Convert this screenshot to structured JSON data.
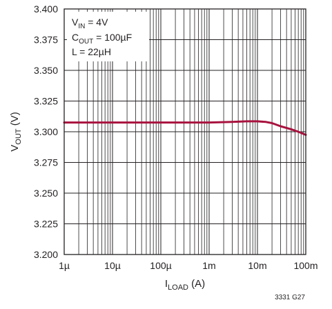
{
  "chart_data": {
    "type": "line",
    "x_scale": "log",
    "xlabel": {
      "main": "I",
      "sub": "LOAD",
      "suffix": " (A)"
    },
    "ylabel": {
      "main": "V",
      "sub": "OUT",
      "suffix": " (V)"
    },
    "xlim": [
      1e-06,
      0.1
    ],
    "ylim": [
      3.2,
      3.4
    ],
    "x_tick_labels": [
      "1µ",
      "10µ",
      "100µ",
      "1m",
      "10m",
      "100m"
    ],
    "y_tick_labels": [
      "3.200",
      "3.225",
      "3.250",
      "3.275",
      "3.300",
      "3.325",
      "3.350",
      "3.375",
      "3.400"
    ],
    "grid": true,
    "annotations": [
      {
        "main": "V",
        "sub": "IN",
        "suffix": " = 4V"
      },
      {
        "main": "C",
        "sub": "OUT",
        "suffix": " = 100µF"
      },
      {
        "main": "L = 22µH",
        "sub": "",
        "suffix": ""
      }
    ],
    "series": [
      {
        "color": "#a8123e",
        "x": [
          1e-06,
          1e-05,
          0.0001,
          0.001,
          0.003,
          0.006,
          0.01,
          0.015,
          0.02,
          0.03,
          0.05,
          0.07,
          0.1
        ],
        "y": [
          3.3075,
          3.3075,
          3.3075,
          3.3075,
          3.308,
          3.3085,
          3.3085,
          3.308,
          3.307,
          3.3045,
          3.302,
          3.3,
          3.2975
        ]
      }
    ]
  },
  "figure_code": "3331 G27"
}
